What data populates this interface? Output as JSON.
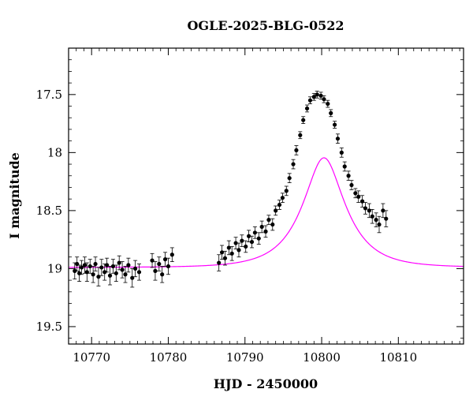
{
  "chart_data": {
    "type": "scatter",
    "title": "OGLE-2025-BLG-0522",
    "xlabel": "HJD - 2450000",
    "ylabel": "I magnitude",
    "xlim": [
      10767,
      10818.5
    ],
    "ylim": [
      19.65,
      17.1
    ],
    "y_inverted": true,
    "x_ticks": [
      10770,
      10780,
      10790,
      10800,
      10810
    ],
    "x_tick_labels": [
      "10770",
      "10780",
      "10790",
      "10800",
      "10810"
    ],
    "y_ticks": [
      17.5,
      18,
      18.5,
      19,
      19.5
    ],
    "y_tick_labels": [
      "17.5",
      "18",
      "18.5",
      "19",
      "19.5"
    ],
    "grid": false,
    "colors": {
      "data": "#000000",
      "model": "#ff00ff",
      "frame": "#000000"
    },
    "series": [
      {
        "type": "scatter_errorbar",
        "x": [
          10767.8,
          10768.1,
          10768.4,
          10768.7,
          10769.1,
          10769.4,
          10769.8,
          10770.2,
          10770.5,
          10770.9,
          10771.3,
          10771.7,
          10772.0,
          10772.4,
          10772.8,
          10773.2,
          10773.6,
          10774.0,
          10774.4,
          10774.8,
          10775.3,
          10775.7,
          10776.2,
          10777.9,
          10778.3,
          10778.8,
          10779.2,
          10779.6,
          10780.0,
          10780.5,
          10786.6,
          10787.0,
          10787.4,
          10787.9,
          10788.3,
          10788.8,
          10789.2,
          10789.6,
          10790.1,
          10790.5,
          10790.9,
          10791.3,
          10791.8,
          10792.2,
          10792.7,
          10793.1,
          10793.6,
          10794.0,
          10794.5,
          10794.9,
          10795.4,
          10795.8,
          10796.3,
          10796.7,
          10797.2,
          10797.6,
          10798.1,
          10798.5,
          10799.0,
          10799.4,
          10799.9,
          10800.3,
          10800.8,
          10801.2,
          10801.7,
          10802.1,
          10802.6,
          10803.0,
          10803.5,
          10803.9,
          10804.4,
          10804.8,
          10805.3,
          10805.7,
          10806.2,
          10806.6,
          10807.1,
          10807.5,
          10808.0,
          10808.4
        ],
        "y": [
          19.02,
          18.96,
          19.04,
          18.99,
          18.97,
          19.03,
          18.98,
          19.05,
          18.96,
          19.07,
          18.99,
          19.03,
          18.97,
          19.06,
          18.98,
          19.04,
          18.95,
          19.01,
          19.05,
          18.97,
          19.08,
          19.0,
          19.03,
          18.93,
          19.02,
          18.96,
          19.05,
          18.92,
          18.98,
          18.88,
          18.95,
          18.86,
          18.91,
          18.82,
          18.87,
          18.78,
          18.84,
          18.76,
          18.81,
          18.72,
          18.77,
          18.69,
          18.74,
          18.64,
          18.68,
          18.58,
          18.62,
          18.5,
          18.45,
          18.39,
          18.33,
          18.22,
          18.1,
          17.98,
          17.85,
          17.72,
          17.62,
          17.55,
          17.52,
          17.5,
          17.51,
          17.54,
          17.58,
          17.66,
          17.76,
          17.88,
          18.0,
          18.12,
          18.2,
          18.28,
          18.35,
          18.38,
          18.42,
          18.48,
          18.5,
          18.55,
          18.58,
          18.62,
          18.5,
          18.57
        ],
        "yerr": [
          0.07,
          0.06,
          0.07,
          0.06,
          0.07,
          0.08,
          0.06,
          0.07,
          0.06,
          0.08,
          0.07,
          0.07,
          0.06,
          0.08,
          0.06,
          0.07,
          0.06,
          0.07,
          0.07,
          0.06,
          0.08,
          0.07,
          0.07,
          0.06,
          0.08,
          0.06,
          0.07,
          0.06,
          0.07,
          0.06,
          0.07,
          0.06,
          0.06,
          0.06,
          0.06,
          0.05,
          0.06,
          0.05,
          0.05,
          0.05,
          0.05,
          0.05,
          0.05,
          0.05,
          0.05,
          0.04,
          0.05,
          0.04,
          0.04,
          0.04,
          0.04,
          0.04,
          0.04,
          0.04,
          0.03,
          0.03,
          0.03,
          0.03,
          0.03,
          0.03,
          0.03,
          0.03,
          0.03,
          0.03,
          0.03,
          0.04,
          0.04,
          0.04,
          0.04,
          0.04,
          0.04,
          0.05,
          0.05,
          0.05,
          0.06,
          0.06,
          0.06,
          0.07,
          0.06,
          0.07
        ]
      },
      {
        "type": "model_curve",
        "t0": 10800.3,
        "tE": 5.0,
        "u0": 0.45,
        "baseline_mag": 18.99
      }
    ]
  }
}
